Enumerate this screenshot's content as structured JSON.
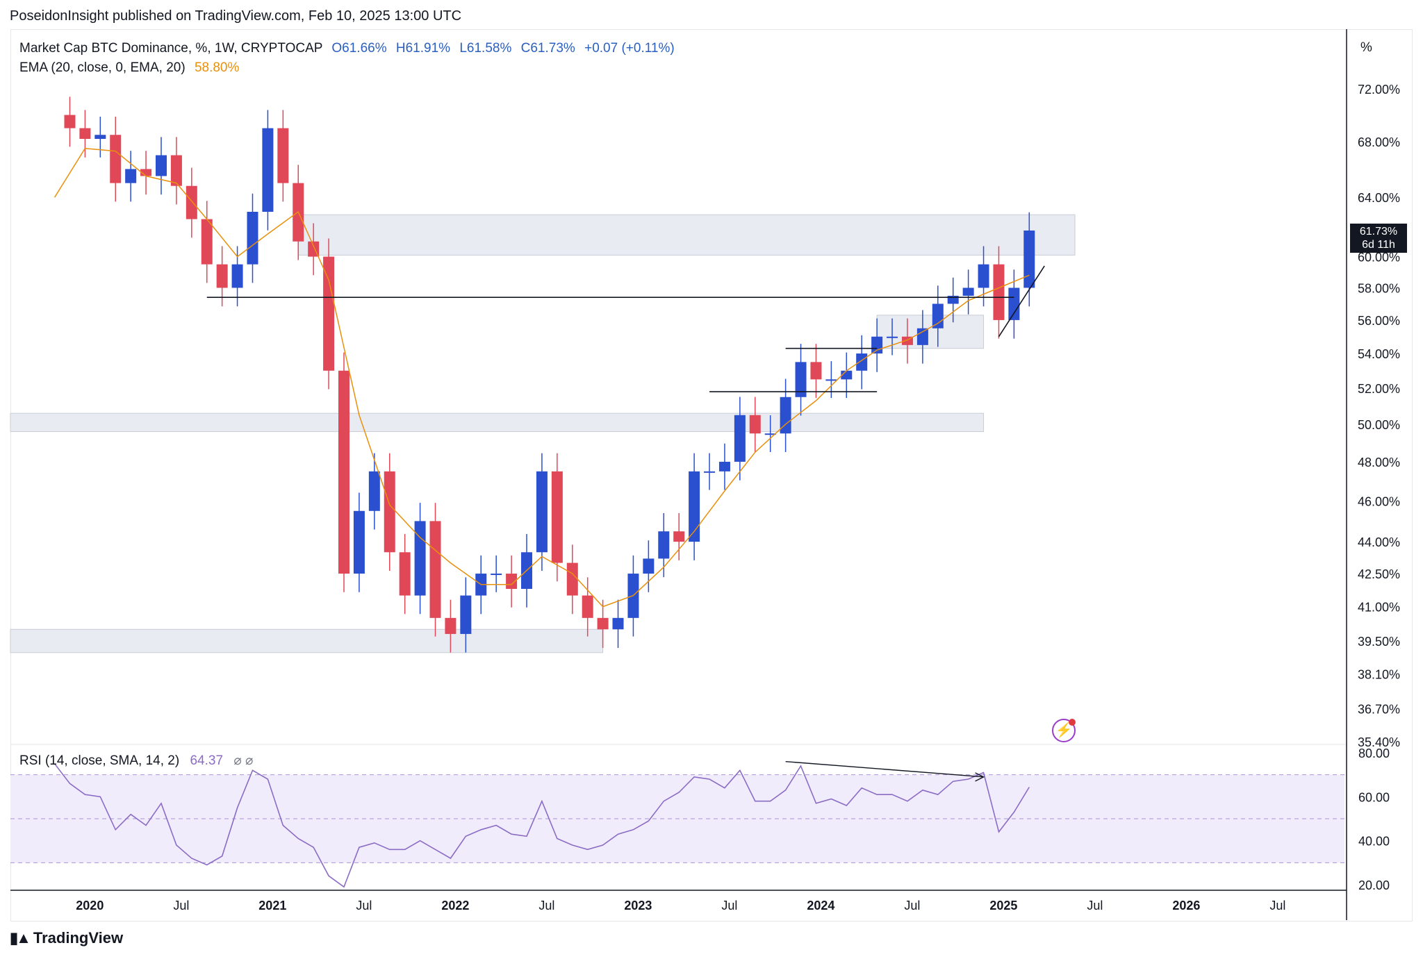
{
  "header": {
    "publish_line": "PoseidonInsight published on TradingView.com, Feb 10, 2025 13:00 UTC"
  },
  "legend": {
    "symbol": "Market Cap BTC Dominance, %, 1W, CRYPTOCAP",
    "open": "O61.66%",
    "high": "H61.91%",
    "low": "L61.58%",
    "close": "C61.73%",
    "change": "+0.07 (+0.11%)",
    "ema_label": "EMA (20, close, 0, EMA, 20)",
    "ema_value": "58.80%"
  },
  "rsi_legend": {
    "label": "RSI (14, close, SMA, 14, 2)",
    "value": "64.37",
    "icons": "⌀ ⌀"
  },
  "axis": {
    "scale_label": "%"
  },
  "badge": {
    "price": "61.73%",
    "countdown": "6d 11h"
  },
  "brand": {
    "name": "TradingView",
    "logo_icon": "tradingview-logo-icon"
  },
  "colors": {
    "up": "#2a4fcf",
    "down": "#e04858",
    "ema": "#e8900c",
    "rsi": "#8b6cc4",
    "zone_fill": "#e9ebf2",
    "zone_border": "#c8ccd6",
    "rsi_band": "#f1ecfb"
  },
  "chart_data": [
    {
      "type": "candlestick",
      "title": "Market Cap BTC Dominance, %, 1W, CRYPTOCAP",
      "yscale": "log",
      "ylim": [
        35.4,
        76.5
      ],
      "yticks": [
        "72.00%",
        "68.00%",
        "64.00%",
        "60.00%",
        "58.00%",
        "56.00%",
        "54.00%",
        "52.00%",
        "50.00%",
        "48.00%",
        "46.00%",
        "44.00%",
        "42.50%",
        "41.00%",
        "39.50%",
        "38.10%",
        "36.70%",
        "35.40%"
      ],
      "xticks": [
        "2020",
        "Jul",
        "2021",
        "Jul",
        "2022",
        "Jul",
        "2023",
        "Jul",
        "2024",
        "Jul",
        "2025",
        "Jul",
        "2026",
        "Jul"
      ],
      "grid": false,
      "series": [
        {
          "name": "Market Cap BTC Dominance",
          "x": [
            "2019-10",
            "2019-11",
            "2019-12",
            "2020-01",
            "2020-02",
            "2020-03",
            "2020-04",
            "2020-05",
            "2020-06",
            "2020-07",
            "2020-08",
            "2020-09",
            "2020-10",
            "2020-11",
            "2020-12",
            "2021-01",
            "2021-02",
            "2021-03",
            "2021-04",
            "2021-05",
            "2021-06",
            "2021-07",
            "2021-08",
            "2021-09",
            "2021-10",
            "2021-11",
            "2021-12",
            "2022-01",
            "2022-02",
            "2022-03",
            "2022-04",
            "2022-05",
            "2022-06",
            "2022-07",
            "2022-08",
            "2022-09",
            "2022-10",
            "2022-11",
            "2022-12",
            "2023-01",
            "2023-02",
            "2023-03",
            "2023-04",
            "2023-05",
            "2023-06",
            "2023-07",
            "2023-08",
            "2023-09",
            "2023-10",
            "2023-11",
            "2023-12",
            "2024-01",
            "2024-02",
            "2024-03",
            "2024-04",
            "2024-05",
            "2024-06",
            "2024-07",
            "2024-08",
            "2024-09",
            "2024-10",
            "2024-11",
            "2024-12",
            "2025-01",
            "2025-02"
          ],
          "values": [
            70.0,
            69.0,
            68.2,
            68.5,
            65.0,
            66.0,
            65.5,
            67.0,
            64.8,
            62.5,
            59.5,
            58.0,
            59.5,
            63.0,
            69.0,
            65.0,
            61.0,
            60.0,
            53.0,
            42.5,
            45.5,
            47.5,
            43.5,
            41.5,
            45.0,
            40.5,
            39.8,
            41.5,
            42.5,
            42.5,
            41.8,
            43.5,
            47.5,
            43.0,
            41.5,
            40.5,
            40.0,
            40.5,
            42.5,
            43.2,
            44.5,
            44.0,
            47.5,
            47.5,
            48.0,
            50.5,
            49.5,
            49.5,
            51.5,
            53.5,
            52.5,
            52.5,
            53.0,
            54.0,
            55.0,
            55.0,
            54.5,
            55.5,
            57.0,
            57.5,
            58.0,
            59.5,
            56.0,
            58.0,
            61.73
          ]
        },
        {
          "name": "EMA (20, close, 0, EMA, 20)",
          "x": [
            "2019-10",
            "2019-12",
            "2020-02",
            "2020-04",
            "2020-06",
            "2020-08",
            "2020-10",
            "2020-12",
            "2021-02",
            "2021-04",
            "2021-06",
            "2021-08",
            "2021-10",
            "2021-12",
            "2022-02",
            "2022-04",
            "2022-06",
            "2022-08",
            "2022-10",
            "2022-12",
            "2023-02",
            "2023-04",
            "2023-06",
            "2023-08",
            "2023-10",
            "2023-12",
            "2024-02",
            "2024-04",
            "2024-06",
            "2024-08",
            "2024-10",
            "2024-12",
            "2025-02"
          ],
          "values": [
            64.0,
            67.5,
            67.3,
            65.5,
            65.0,
            62.5,
            60.0,
            61.5,
            63.0,
            58.5,
            50.5,
            45.8,
            44.2,
            43.0,
            42.0,
            42.0,
            43.3,
            42.5,
            41.0,
            41.5,
            42.8,
            44.5,
            46.5,
            48.5,
            50.0,
            51.3,
            53.0,
            54.2,
            54.8,
            55.8,
            57.2,
            58.0,
            58.8
          ]
        }
      ],
      "annotations": [
        {
          "kind": "zone",
          "label": "",
          "y": [
            60.1,
            62.8
          ],
          "x": [
            "2021-02",
            "2025-05"
          ]
        },
        {
          "kind": "zone",
          "label": "",
          "y": [
            49.6,
            50.6
          ],
          "x": [
            "2019-10",
            "2024-11"
          ]
        },
        {
          "kind": "zone",
          "label": "",
          "y": [
            39.0,
            40.0
          ],
          "x": [
            "2019-10",
            "2022-10"
          ]
        },
        {
          "kind": "zone",
          "label": "",
          "y": [
            54.3,
            56.3
          ],
          "x": [
            "2024-04",
            "2024-11"
          ]
        },
        {
          "kind": "hline",
          "y": 57.4,
          "x": [
            "2020-08",
            "2025-01"
          ]
        },
        {
          "kind": "hline",
          "y": 54.3,
          "x": [
            "2023-10",
            "2024-04"
          ]
        },
        {
          "kind": "hline",
          "y": 51.8,
          "x": [
            "2023-05",
            "2024-04"
          ]
        }
      ]
    },
    {
      "type": "line",
      "title": "RSI (14, close, SMA, 14, 2)",
      "ylim": [
        20,
        80
      ],
      "yticks": [
        "80.00",
        "60.00",
        "40.00",
        "20.00"
      ],
      "bands": [
        30,
        50,
        70
      ],
      "series": [
        {
          "name": "RSI",
          "x": [
            "2019-10",
            "2019-11",
            "2019-12",
            "2020-01",
            "2020-02",
            "2020-03",
            "2020-04",
            "2020-05",
            "2020-06",
            "2020-07",
            "2020-08",
            "2020-09",
            "2020-10",
            "2020-11",
            "2020-12",
            "2021-01",
            "2021-02",
            "2021-03",
            "2021-04",
            "2021-05",
            "2021-06",
            "2021-07",
            "2021-08",
            "2021-09",
            "2021-10",
            "2021-11",
            "2021-12",
            "2022-01",
            "2022-02",
            "2022-03",
            "2022-04",
            "2022-05",
            "2022-06",
            "2022-07",
            "2022-08",
            "2022-09",
            "2022-10",
            "2022-11",
            "2022-12",
            "2023-01",
            "2023-02",
            "2023-03",
            "2023-04",
            "2023-05",
            "2023-06",
            "2023-07",
            "2023-08",
            "2023-09",
            "2023-10",
            "2023-11",
            "2023-12",
            "2024-01",
            "2024-02",
            "2024-03",
            "2024-04",
            "2024-05",
            "2024-06",
            "2024-07",
            "2024-08",
            "2024-09",
            "2024-10",
            "2024-11",
            "2024-12",
            "2025-01",
            "2025-02"
          ],
          "values": [
            75,
            66,
            61,
            60,
            45,
            52,
            47,
            57,
            38,
            32,
            29,
            33,
            55,
            72,
            68,
            47,
            41,
            37,
            24,
            19,
            37,
            39,
            36,
            36,
            40,
            36,
            32,
            42,
            45,
            47,
            43,
            42,
            58,
            41,
            38,
            36,
            38,
            43,
            45,
            49,
            58,
            62,
            69,
            68,
            64,
            72,
            58,
            58,
            63,
            74,
            57,
            59,
            56,
            64,
            61,
            61,
            58,
            63,
            61,
            67,
            68,
            71,
            44,
            53,
            64.37
          ]
        }
      ],
      "annotations": [
        {
          "kind": "arrow",
          "y": [
            76,
            69
          ],
          "x": [
            "2023-10",
            "2024-11"
          ]
        }
      ]
    }
  ]
}
